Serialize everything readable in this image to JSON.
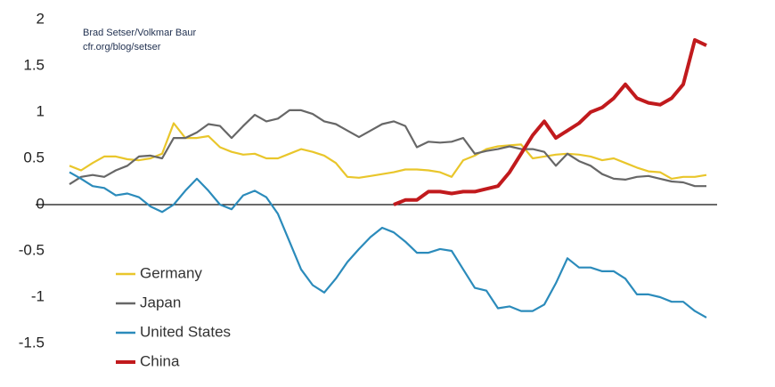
{
  "chart_data": {
    "type": "line",
    "source_lines": [
      "Brad Setser/Volkmar Baur",
      "cfr.org/blog/setser"
    ],
    "categories": [
      null,
      null,
      null,
      null,
      null,
      null,
      null,
      null,
      null,
      null,
      null,
      null,
      null,
      null,
      null,
      null,
      null,
      null,
      null,
      null,
      null,
      null,
      null,
      null,
      null,
      null,
      null,
      null,
      null,
      null,
      null,
      null,
      null,
      null,
      null,
      null,
      null,
      null,
      null,
      null,
      null,
      null,
      null,
      null,
      null,
      null,
      null,
      null,
      null,
      null,
      null,
      null,
      null,
      null,
      null,
      null
    ],
    "series": [
      {
        "name": "Germany",
        "color": "#e9c62b",
        "values": [
          0.42,
          0.37,
          0.45,
          0.52,
          0.52,
          0.49,
          0.48,
          0.5,
          0.55,
          0.88,
          0.72,
          0.72,
          0.74,
          0.62,
          0.57,
          0.54,
          0.55,
          0.5,
          0.5,
          0.55,
          0.6,
          0.57,
          0.53,
          0.45,
          0.3,
          0.29,
          0.31,
          0.33,
          0.35,
          0.38,
          0.38,
          0.37,
          0.35,
          0.3,
          0.48,
          0.53,
          0.6,
          0.63,
          0.64,
          0.65,
          0.5,
          0.52,
          0.54,
          0.55,
          0.54,
          0.52,
          0.48,
          0.5,
          0.45,
          0.4,
          0.36,
          0.35,
          0.28,
          0.3,
          0.3,
          0.32
        ]
      },
      {
        "name": "Japan",
        "color": "#676767",
        "values": [
          0.22,
          0.3,
          0.32,
          0.3,
          0.37,
          0.42,
          0.52,
          0.53,
          0.5,
          0.72,
          0.72,
          0.78,
          0.87,
          0.85,
          0.72,
          0.85,
          0.97,
          0.9,
          0.93,
          1.02,
          1.02,
          0.98,
          0.9,
          0.87,
          0.8,
          0.73,
          0.8,
          0.87,
          0.9,
          0.85,
          0.62,
          0.68,
          0.67,
          0.68,
          0.72,
          0.55,
          0.58,
          0.6,
          0.63,
          0.6,
          0.6,
          0.57,
          0.42,
          0.55,
          0.47,
          0.42,
          0.33,
          0.28,
          0.27,
          0.3,
          0.31,
          0.28,
          0.25,
          0.24,
          0.2,
          0.2
        ]
      },
      {
        "name": "United States",
        "color": "#2b8bbb",
        "values": [
          0.35,
          0.28,
          0.2,
          0.18,
          0.1,
          0.12,
          0.08,
          -0.02,
          -0.08,
          0.0,
          0.15,
          0.28,
          0.15,
          0.0,
          -0.05,
          0.1,
          0.15,
          0.08,
          -0.1,
          -0.4,
          -0.7,
          -0.87,
          -0.95,
          -0.8,
          -0.62,
          -0.48,
          -0.35,
          -0.25,
          -0.3,
          -0.4,
          -0.52,
          -0.52,
          -0.48,
          -0.5,
          -0.7,
          -0.9,
          -0.93,
          -1.12,
          -1.1,
          -1.15,
          -1.15,
          -1.08,
          -0.85,
          -0.58,
          -0.68,
          -0.68,
          -0.72,
          -0.72,
          -0.8,
          -0.97,
          -0.97,
          -1.0,
          -1.05,
          -1.05,
          -1.15,
          -1.22
        ]
      },
      {
        "name": "China",
        "color": "#c11a1d",
        "values": [
          null,
          null,
          null,
          null,
          null,
          null,
          null,
          null,
          null,
          null,
          null,
          null,
          null,
          null,
          null,
          null,
          null,
          null,
          null,
          null,
          null,
          null,
          null,
          null,
          null,
          null,
          null,
          null,
          0.0,
          0.05,
          0.05,
          0.14,
          0.14,
          0.12,
          0.14,
          0.14,
          0.17,
          0.2,
          0.35,
          0.55,
          0.75,
          0.9,
          0.72,
          0.8,
          0.88,
          1.0,
          1.05,
          1.15,
          1.3,
          1.15,
          1.1,
          1.08,
          1.15,
          1.3,
          1.78,
          1.72
        ]
      }
    ],
    "ylim": [
      -1.6,
      2.1
    ],
    "yticks": [
      2,
      1.5,
      1,
      0.5,
      0,
      -0.5,
      -1,
      -1.5
    ],
    "zero_line": true,
    "legend": "lower-left"
  }
}
